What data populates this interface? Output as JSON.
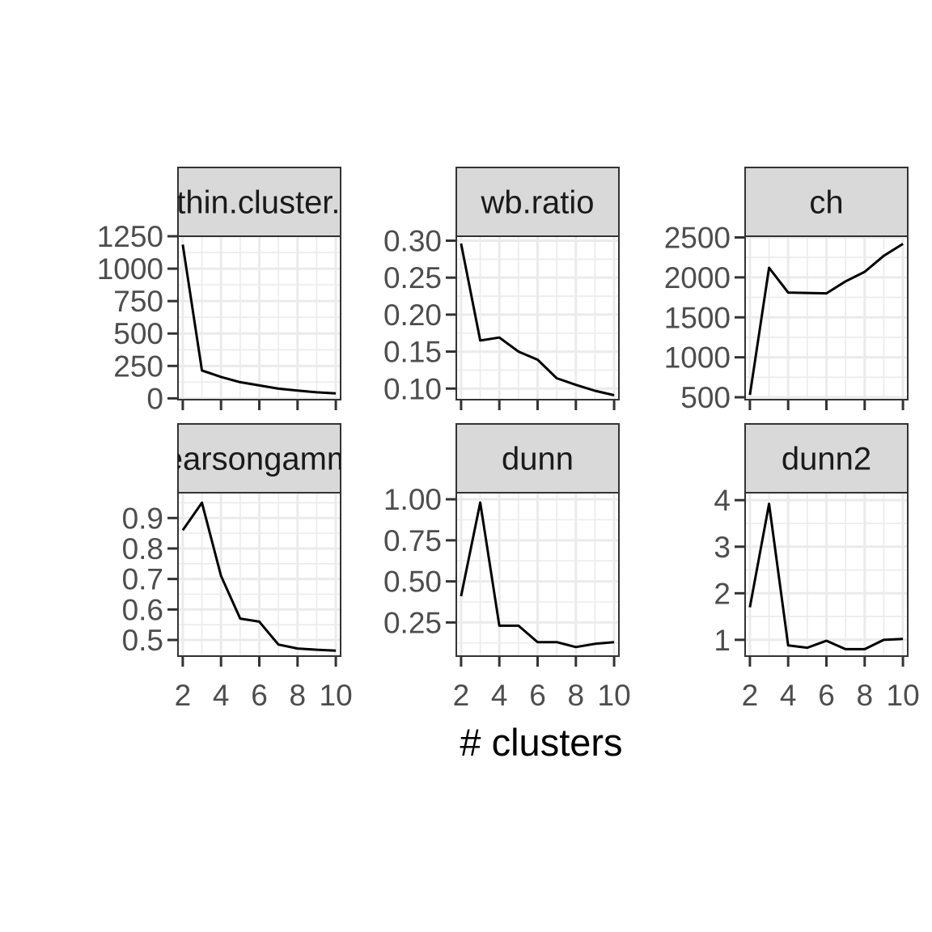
{
  "xlabel": "# clusters",
  "chart_data": [
    {
      "type": "line",
      "title": "within.cluster.ss",
      "x": [
        2,
        3,
        4,
        5,
        6,
        7,
        8,
        9,
        10
      ],
      "values": [
        1185,
        215,
        165,
        125,
        100,
        75,
        60,
        47,
        38
      ],
      "xlim": [
        1.75,
        10.25
      ],
      "ylim": [
        -10,
        1250
      ],
      "xticks": [
        "2",
        "4",
        "6",
        "8",
        "10"
      ],
      "yticks": [
        "0",
        "250",
        "500",
        "750",
        "1000",
        "1250"
      ],
      "grid": true
    },
    {
      "type": "line",
      "title": "wb.ratio",
      "x": [
        2,
        3,
        4,
        5,
        6,
        7,
        8,
        9,
        10
      ],
      "values": [
        0.296,
        0.165,
        0.169,
        0.15,
        0.139,
        0.114,
        0.105,
        0.097,
        0.091
      ],
      "xlim": [
        1.75,
        10.25
      ],
      "ylim": [
        0.085,
        0.306
      ],
      "xticks": [
        "2",
        "4",
        "6",
        "8",
        "10"
      ],
      "yticks": [
        "0.10",
        "0.15",
        "0.20",
        "0.25",
        "0.30"
      ],
      "grid": true
    },
    {
      "type": "line",
      "title": "ch",
      "x": [
        2,
        3,
        4,
        5,
        6,
        7,
        8,
        9,
        10
      ],
      "values": [
        530,
        2120,
        1810,
        1805,
        1800,
        1950,
        2070,
        2270,
        2420
      ],
      "xlim": [
        1.75,
        10.25
      ],
      "ylim": [
        470,
        2515
      ],
      "xticks": [
        "2",
        "4",
        "6",
        "8",
        "10"
      ],
      "yticks": [
        "500",
        "1000",
        "1500",
        "2000",
        "2500"
      ],
      "grid": true
    },
    {
      "type": "line",
      "title": "pearsongamma",
      "x": [
        2,
        3,
        4,
        5,
        6,
        7,
        8,
        9,
        10
      ],
      "values": [
        0.86,
        0.95,
        0.71,
        0.57,
        0.56,
        0.485,
        0.472,
        0.468,
        0.465
      ],
      "xlim": [
        1.75,
        10.25
      ],
      "ylim": [
        0.447,
        0.983
      ],
      "xticks": [
        "2",
        "4",
        "6",
        "8",
        "10"
      ],
      "yticks": [
        "0.5",
        "0.6",
        "0.7",
        "0.8",
        "0.9"
      ],
      "grid": true
    },
    {
      "type": "line",
      "title": "dunn",
      "x": [
        2,
        3,
        4,
        5,
        6,
        7,
        8,
        9,
        10
      ],
      "values": [
        0.41,
        0.98,
        0.23,
        0.23,
        0.13,
        0.13,
        0.1,
        0.12,
        0.13
      ],
      "xlim": [
        1.75,
        10.25
      ],
      "ylim": [
        0.045,
        1.04
      ],
      "xticks": [
        "2",
        "4",
        "6",
        "8",
        "10"
      ],
      "yticks": [
        "0.25",
        "0.50",
        "0.75",
        "1.00"
      ],
      "grid": true
    },
    {
      "type": "line",
      "title": "dunn2",
      "x": [
        2,
        3,
        4,
        5,
        6,
        7,
        8,
        9,
        10
      ],
      "values": [
        1.7,
        3.92,
        0.88,
        0.83,
        0.98,
        0.8,
        0.8,
        1.0,
        1.02
      ],
      "xlim": [
        1.75,
        10.25
      ],
      "ylim": [
        0.65,
        4.16
      ],
      "xticks": [
        "2",
        "4",
        "6",
        "8",
        "10"
      ],
      "yticks": [
        "1",
        "2",
        "3",
        "4"
      ],
      "grid": true
    }
  ]
}
